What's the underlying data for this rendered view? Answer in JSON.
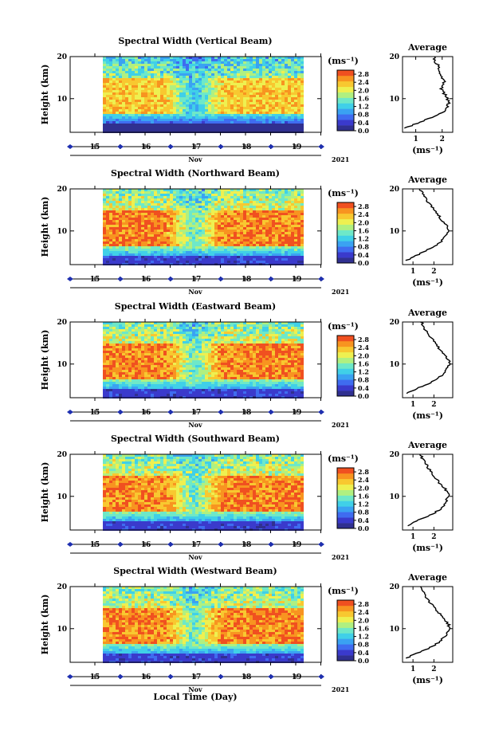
{
  "figure": {
    "xlabel": "Local Time (Day)"
  },
  "chart_data": [
    {
      "type": "heatmap",
      "title": "Spectral Width (Vertical Beam)",
      "ylabel": "Height (km)",
      "yticks": [
        "20",
        "10"
      ],
      "ylim": [
        2,
        20
      ],
      "xticks": [
        "15",
        "16",
        "17",
        "18",
        "19"
      ],
      "month": "Nov",
      "year": "2021",
      "colorbar": {
        "unit": "(ms⁻¹)",
        "ticks": [
          "2.8",
          "2.4",
          "2.0",
          "1.6",
          "1.2",
          "0.8",
          "0.4",
          "0.0"
        ],
        "range": [
          0,
          3.0
        ]
      },
      "average": {
        "title": "Average",
        "yticks": [
          "20",
          "10"
        ],
        "xticks": [
          "1",
          "2"
        ],
        "xlim": [
          0.5,
          2.4
        ],
        "xlabel": "(ms⁻¹)",
        "height": [
          3,
          4,
          5,
          6,
          7,
          8,
          9,
          10,
          11,
          12,
          13,
          14,
          15,
          16,
          17,
          18,
          19,
          20
        ],
        "value": [
          0.6,
          1.0,
          1.4,
          1.8,
          2.05,
          2.2,
          2.25,
          2.2,
          2.1,
          2.0,
          1.95,
          2.1,
          1.95,
          1.9,
          1.9,
          1.85,
          1.7,
          1.75
        ]
      }
    },
    {
      "type": "heatmap",
      "title": "Spectral Width (Northward Beam)",
      "ylabel": "Height (km)",
      "yticks": [
        "20",
        "10"
      ],
      "ylim": [
        2,
        20
      ],
      "xticks": [
        "15",
        "16",
        "17",
        "18",
        "19"
      ],
      "month": "Nov",
      "year": "2021",
      "colorbar": {
        "unit": "(ms⁻¹)",
        "ticks": [
          "2.8",
          "2.4",
          "2.0",
          "1.6",
          "1.2",
          "0.8",
          "0.4",
          "0.0"
        ],
        "range": [
          0,
          3.0
        ]
      },
      "average": {
        "title": "Average",
        "yticks": [
          "20",
          "10"
        ],
        "xticks": [
          "1",
          "2"
        ],
        "xlim": [
          0.5,
          2.9
        ],
        "xlabel": "(ms⁻¹)",
        "height": [
          3,
          4,
          5,
          6,
          7,
          8,
          9,
          10,
          11,
          12,
          13,
          14,
          15,
          16,
          17,
          18,
          19,
          20
        ],
        "value": [
          0.7,
          1.1,
          1.5,
          1.9,
          2.2,
          2.45,
          2.6,
          2.7,
          2.65,
          2.5,
          2.3,
          2.2,
          2.0,
          1.85,
          1.7,
          1.6,
          1.45,
          1.35
        ]
      }
    },
    {
      "type": "heatmap",
      "title": "Spectral Width (Eastward Beam)",
      "ylabel": "Height (km)",
      "yticks": [
        "20",
        "10"
      ],
      "ylim": [
        2,
        20
      ],
      "xticks": [
        "15",
        "16",
        "17",
        "18",
        "19"
      ],
      "month": "Nov",
      "year": "2021",
      "colorbar": {
        "unit": "(ms⁻¹)",
        "ticks": [
          "2.8",
          "2.4",
          "2.0",
          "1.6",
          "1.2",
          "0.8",
          "0.4",
          "0.0"
        ],
        "range": [
          0,
          3.0
        ]
      },
      "average": {
        "title": "Average",
        "yticks": [
          "20",
          "10"
        ],
        "xticks": [
          "1",
          "2"
        ],
        "xlim": [
          0.5,
          2.9
        ],
        "xlabel": "(ms⁻¹)",
        "height": [
          3,
          4,
          5,
          6,
          7,
          8,
          9,
          10,
          11,
          12,
          13,
          14,
          15,
          16,
          17,
          18,
          19,
          20
        ],
        "value": [
          0.7,
          1.1,
          1.6,
          2.0,
          2.3,
          2.5,
          2.65,
          2.75,
          2.7,
          2.55,
          2.35,
          2.2,
          2.05,
          1.9,
          1.75,
          1.6,
          1.5,
          1.4
        ]
      }
    },
    {
      "type": "heatmap",
      "title": "Spectral Width (Southward Beam)",
      "ylabel": "Height (km)",
      "yticks": [
        "20",
        "10"
      ],
      "ylim": [
        2,
        20
      ],
      "xticks": [
        "15",
        "16",
        "17",
        "18",
        "19"
      ],
      "month": "Nov",
      "year": "2021",
      "colorbar": {
        "unit": "(ms⁻¹)",
        "ticks": [
          "2.8",
          "2.4",
          "2.0",
          "1.6",
          "1.2",
          "0.8",
          "0.4",
          "0.0"
        ],
        "range": [
          0,
          3.0
        ]
      },
      "average": {
        "title": "Average",
        "yticks": [
          "20",
          "10"
        ],
        "xticks": [
          "1",
          "2"
        ],
        "xlim": [
          0.5,
          2.9
        ],
        "xlabel": "(ms⁻¹)",
        "height": [
          3,
          4,
          5,
          6,
          7,
          8,
          9,
          10,
          11,
          12,
          13,
          14,
          15,
          16,
          17,
          18,
          19,
          20
        ],
        "value": [
          0.7,
          1.1,
          1.6,
          2.0,
          2.3,
          2.5,
          2.6,
          2.7,
          2.65,
          2.5,
          2.3,
          2.15,
          2.0,
          1.85,
          1.7,
          1.6,
          1.45,
          1.35
        ]
      }
    },
    {
      "type": "heatmap",
      "title": "Spectral Width (Westward Beam)",
      "ylabel": "Height (km)",
      "yticks": [
        "20",
        "10"
      ],
      "ylim": [
        2,
        20
      ],
      "xticks": [
        "15",
        "16",
        "17",
        "18",
        "19"
      ],
      "month": "Nov",
      "year": "2021",
      "colorbar": {
        "unit": "(ms⁻¹)",
        "ticks": [
          "2.8",
          "2.4",
          "2.0",
          "1.6",
          "1.2",
          "0.8",
          "0.4",
          "0.0"
        ],
        "range": [
          0,
          3.0
        ]
      },
      "average": {
        "title": "Average",
        "yticks": [
          "20",
          "10"
        ],
        "xticks": [
          "1",
          "2"
        ],
        "xlim": [
          0.5,
          2.9
        ],
        "xlabel": "(ms⁻¹)",
        "height": [
          3,
          4,
          5,
          6,
          7,
          8,
          9,
          10,
          11,
          12,
          13,
          14,
          15,
          16,
          17,
          18,
          19,
          20
        ],
        "value": [
          0.7,
          1.1,
          1.6,
          2.0,
          2.3,
          2.5,
          2.65,
          2.75,
          2.7,
          2.55,
          2.35,
          2.2,
          2.0,
          1.85,
          1.7,
          1.55,
          1.45,
          1.35
        ]
      }
    }
  ],
  "colors": {
    "scale": [
      "#303090",
      "#3a3acc",
      "#3f6cf0",
      "#3aa2f2",
      "#40d0e8",
      "#6ee8c8",
      "#b0f080",
      "#eef050",
      "#f8c830",
      "#f89420",
      "#f05020"
    ],
    "axis_marker": "#1e2fb0"
  }
}
